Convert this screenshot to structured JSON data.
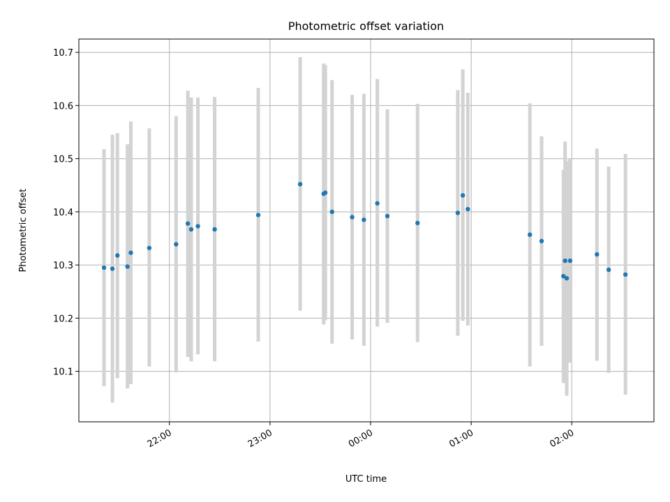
{
  "chart_data": {
    "type": "scatter",
    "title": "Photometric offset variation",
    "xlabel": "UTC time",
    "ylabel": "Photometric offset",
    "ylim": [
      10.005,
      10.725
    ],
    "xlim": [
      "21:06",
      "02:49"
    ],
    "grid": true,
    "colors": {
      "points": "#1f77b4",
      "errorbars": "#d3d3d3"
    },
    "x_ticks": [
      "22:00",
      "23:00",
      "00:00",
      "01:00",
      "02:00"
    ],
    "y_ticks": [
      "10.1",
      "10.2",
      "10.3",
      "10.4",
      "10.5",
      "10.6",
      "10.7"
    ],
    "points": [
      {
        "t": "21:21",
        "y": 10.295,
        "err_low": 10.072,
        "err_high": 10.518
      },
      {
        "t": "21:26",
        "y": 10.293,
        "err_low": 10.041,
        "err_high": 10.545
      },
      {
        "t": "21:29",
        "y": 10.318,
        "err_low": 10.087,
        "err_high": 10.548
      },
      {
        "t": "21:35",
        "y": 10.297,
        "err_low": 10.068,
        "err_high": 10.527
      },
      {
        "t": "21:37",
        "y": 10.323,
        "err_low": 10.076,
        "err_high": 10.57
      },
      {
        "t": "21:48",
        "y": 10.332,
        "err_low": 10.109,
        "err_high": 10.557
      },
      {
        "t": "22:04",
        "y": 10.339,
        "err_low": 10.098,
        "err_high": 10.58
      },
      {
        "t": "22:11",
        "y": 10.378,
        "err_low": 10.127,
        "err_high": 10.628
      },
      {
        "t": "22:13",
        "y": 10.367,
        "err_low": 10.119,
        "err_high": 10.615
      },
      {
        "t": "22:17",
        "y": 10.373,
        "err_low": 10.132,
        "err_high": 10.615
      },
      {
        "t": "22:27",
        "y": 10.367,
        "err_low": 10.119,
        "err_high": 10.616
      },
      {
        "t": "22:53",
        "y": 10.394,
        "err_low": 10.156,
        "err_high": 10.633
      },
      {
        "t": "23:18",
        "y": 10.452,
        "err_low": 10.214,
        "err_high": 10.691
      },
      {
        "t": "23:32",
        "y": 10.434,
        "err_low": 10.188,
        "err_high": 10.679
      },
      {
        "t": "23:33",
        "y": 10.436,
        "err_low": 10.196,
        "err_high": 10.676
      },
      {
        "t": "23:37",
        "y": 10.4,
        "err_low": 10.152,
        "err_high": 10.648
      },
      {
        "t": "23:49",
        "y": 10.39,
        "err_low": 10.16,
        "err_high": 10.62
      },
      {
        "t": "23:56",
        "y": 10.385,
        "err_low": 10.148,
        "err_high": 10.622
      },
      {
        "t": "00:04",
        "y": 10.416,
        "err_low": 10.184,
        "err_high": 10.65
      },
      {
        "t": "00:10",
        "y": 10.392,
        "err_low": 10.191,
        "err_high": 10.593
      },
      {
        "t": "00:28",
        "y": 10.379,
        "err_low": 10.155,
        "err_high": 10.603
      },
      {
        "t": "00:52",
        "y": 10.398,
        "err_low": 10.167,
        "err_high": 10.629
      },
      {
        "t": "00:55",
        "y": 10.431,
        "err_low": 10.195,
        "err_high": 10.668
      },
      {
        "t": "00:58",
        "y": 10.405,
        "err_low": 10.186,
        "err_high": 10.624
      },
      {
        "t": "01:35",
        "y": 10.357,
        "err_low": 10.109,
        "err_high": 10.604
      },
      {
        "t": "01:42",
        "y": 10.345,
        "err_low": 10.148,
        "err_high": 10.542
      },
      {
        "t": "01:55",
        "y": 10.279,
        "err_low": 10.078,
        "err_high": 10.479
      },
      {
        "t": "01:56",
        "y": 10.308,
        "err_low": 10.085,
        "err_high": 10.532
      },
      {
        "t": "01:57",
        "y": 10.275,
        "err_low": 10.054,
        "err_high": 10.496
      },
      {
        "t": "01:59",
        "y": 10.308,
        "err_low": 10.116,
        "err_high": 10.5
      },
      {
        "t": "02:15",
        "y": 10.32,
        "err_low": 10.12,
        "err_high": 10.519
      },
      {
        "t": "02:22",
        "y": 10.291,
        "err_low": 10.097,
        "err_high": 10.485
      },
      {
        "t": "02:32",
        "y": 10.282,
        "err_low": 10.056,
        "err_high": 10.509
      }
    ]
  }
}
